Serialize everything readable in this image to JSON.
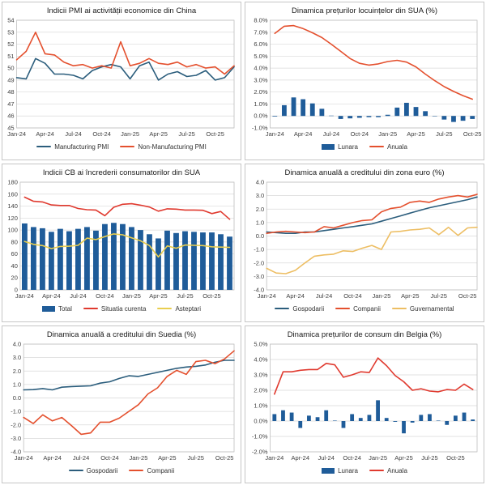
{
  "chart_data": [
    {
      "title": "Indicii PMI ai activității economice din China",
      "type": "line",
      "x_labels": [
        "Jan-24",
        "Apr-24",
        "Jul-24",
        "Oct-24",
        "Jan-25",
        "Apr-25",
        "Jul-25",
        "Oct-25"
      ],
      "x_label_every": 3,
      "x_count": 24,
      "x_style": "edge",
      "ylim": [
        45,
        54
      ],
      "ytick_step": 1,
      "ytick_format": "int",
      "grid": "horizontal",
      "legend_position": "bottom",
      "series": [
        {
          "name": "Manufacturing PMI",
          "type": "line",
          "color": "#2B5D7C",
          "values": [
            49.2,
            49.1,
            50.8,
            50.4,
            49.5,
            49.5,
            49.4,
            49.1,
            49.8,
            50.1,
            50.3,
            50.1,
            49.1,
            50.2,
            50.5,
            49.0,
            49.5,
            49.7,
            49.3,
            49.4,
            49.8,
            49.0,
            49.2,
            50.1
          ]
        },
        {
          "name": "Non-Manufacturing PMI",
          "type": "line",
          "color": "#E4502E",
          "values": [
            50.7,
            51.4,
            53.0,
            51.2,
            51.1,
            50.5,
            50.2,
            50.3,
            50.0,
            50.2,
            50.0,
            52.2,
            50.2,
            50.4,
            50.8,
            50.4,
            50.3,
            50.5,
            50.1,
            50.3,
            50.0,
            50.1,
            49.5,
            50.2
          ]
        }
      ]
    },
    {
      "title": "Dinamica prețurilor locuințelor din SUA (%)",
      "type": "bar-line",
      "x_labels": [
        "Jan-24",
        "Apr-24",
        "Jul-24",
        "Oct-24",
        "Jan-25",
        "Apr-25",
        "Jul-25",
        "Oct-25"
      ],
      "x_label_every": 3,
      "x_count": 22,
      "x_style": "center",
      "bar_frac": 0.5,
      "ylim": [
        -1,
        8
      ],
      "ytick_step": 1,
      "ytick_format": "pct1",
      "grid": "horizontal",
      "legend_position": "bottom",
      "series": [
        {
          "name": "Lunara",
          "type": "bar",
          "color": "#1F5C99",
          "values": [
            -0.05,
            0.9,
            1.55,
            1.4,
            1.05,
            0.6,
            0.03,
            -0.25,
            -0.2,
            -0.15,
            -0.1,
            -0.1,
            0.1,
            0.7,
            1.1,
            0.75,
            0.4,
            0.0,
            -0.3,
            -0.5,
            -0.4,
            -0.25
          ]
        },
        {
          "name": "Anuala",
          "type": "line",
          "color": "#E4502E",
          "values": [
            6.9,
            7.5,
            7.55,
            7.3,
            6.95,
            6.55,
            6.0,
            5.4,
            4.8,
            4.4,
            4.25,
            4.35,
            4.55,
            4.65,
            4.5,
            4.1,
            3.5,
            2.95,
            2.45,
            2.05,
            1.7,
            1.4
          ]
        }
      ]
    },
    {
      "title": "Indicii CB ai încrederii consumatorilor din SUA",
      "type": "bar-line",
      "x_labels": [
        "Jan-24",
        "Apr-24",
        "Jul-24",
        "Oct-24",
        "Jan-25",
        "Apr-25",
        "Jul-25",
        "Oct-25"
      ],
      "x_label_every": 3,
      "x_count": 24,
      "x_style": "center",
      "bar_frac": 0.62,
      "ylim": [
        0,
        180
      ],
      "ytick_step": 20,
      "ytick_format": "int",
      "grid": "horizontal",
      "legend_position": "bottom",
      "series": [
        {
          "name": "Total",
          "type": "bar",
          "color": "#1F5C99",
          "values": [
            111,
            105,
            103,
            97,
            102,
            98,
            102,
            105,
            99,
            110,
            112,
            110,
            105,
            100,
            93,
            86,
            99,
            95,
            98,
            97,
            96,
            96,
            93,
            89
          ]
        },
        {
          "name": "Situatia curenta",
          "type": "line",
          "color": "#E03A2F",
          "values": [
            155,
            148,
            147,
            142,
            141,
            141,
            136,
            134,
            133.5,
            124,
            138,
            143,
            144,
            141.5,
            138.5,
            131.5,
            135.5,
            135,
            133.5,
            133.5,
            133,
            127.5,
            131,
            118
          ]
        },
        {
          "name": "Asteptari",
          "type": "line",
          "color": "#E9CE4F",
          "values": [
            81,
            76,
            74,
            69,
            72.5,
            73,
            74.5,
            86.5,
            84,
            89,
            93.5,
            92,
            87,
            82,
            74,
            55,
            73.5,
            69.5,
            75,
            74.5,
            74,
            72,
            71.5,
            71
          ]
        }
      ]
    },
    {
      "title": "Dinamica anuală a creditului din zona euro (%)",
      "type": "line",
      "x_labels": [
        "Jan-24",
        "Apr-24",
        "Jul-24",
        "Oct-24",
        "Jan-25",
        "Apr-25",
        "Jul-25",
        "Oct-25"
      ],
      "x_label_every": 3,
      "x_count": 23,
      "x_style": "edge",
      "ylim": [
        -4,
        4
      ],
      "ytick_step": 1,
      "ytick_format": "dec1",
      "grid": "horizontal",
      "legend_position": "bottom",
      "series": [
        {
          "name": "Gospodarii",
          "type": "line",
          "color": "#2B5D7C",
          "values": [
            0.3,
            0.25,
            0.2,
            0.2,
            0.3,
            0.3,
            0.4,
            0.5,
            0.6,
            0.7,
            0.8,
            0.9,
            1.1,
            1.3,
            1.5,
            1.7,
            1.9,
            2.1,
            2.25,
            2.4,
            2.55,
            2.7,
            2.9
          ]
        },
        {
          "name": "Companii",
          "type": "line",
          "color": "#E4502E",
          "values": [
            0.2,
            0.3,
            0.35,
            0.3,
            0.25,
            0.3,
            0.7,
            0.6,
            0.8,
            1.0,
            1.15,
            1.2,
            1.8,
            2.05,
            2.15,
            2.5,
            2.6,
            2.5,
            2.75,
            2.9,
            3.0,
            2.9,
            3.1
          ]
        },
        {
          "name": "Guvernamental",
          "type": "line",
          "color": "#EDBE63",
          "values": [
            -2.4,
            -2.75,
            -2.8,
            -2.55,
            -2.0,
            -1.5,
            -1.4,
            -1.35,
            -1.1,
            -1.15,
            -0.9,
            -0.7,
            -1.0,
            0.3,
            0.35,
            0.45,
            0.5,
            0.6,
            0.1,
            0.65,
            0.05,
            0.6,
            0.65
          ]
        }
      ]
    },
    {
      "title": "Dinamica anuală a creditului din Suedia (%)",
      "type": "line",
      "x_labels": [
        "Jan-24",
        "Apr-24",
        "Jul-24",
        "Oct-24",
        "Jan-25",
        "Apr-25",
        "Jul-25",
        "Oct-25"
      ],
      "x_label_every": 3,
      "x_count": 23,
      "x_style": "edge",
      "ylim": [
        -4,
        4
      ],
      "ytick_step": 1,
      "ytick_format": "dec1",
      "grid": "horizontal",
      "legend_position": "bottom",
      "series": [
        {
          "name": "Gospodarii",
          "type": "line",
          "color": "#2B5D7C",
          "values": [
            0.6,
            0.62,
            0.7,
            0.6,
            0.8,
            0.85,
            0.88,
            0.9,
            1.1,
            1.2,
            1.45,
            1.65,
            1.6,
            1.75,
            1.9,
            2.05,
            2.2,
            2.3,
            2.35,
            2.45,
            2.65,
            2.8,
            2.8
          ]
        },
        {
          "name": "Companii",
          "type": "line",
          "color": "#E4502E",
          "values": [
            -1.45,
            -1.9,
            -1.25,
            -1.7,
            -1.45,
            -2.05,
            -2.7,
            -2.6,
            -1.8,
            -1.8,
            -1.5,
            -1.0,
            -0.5,
            0.3,
            0.75,
            1.6,
            2.05,
            1.75,
            2.7,
            2.8,
            2.55,
            2.9,
            3.5
          ]
        }
      ]
    },
    {
      "title": "Dinamica prețurilor de consum din Belgia (%)",
      "type": "bar-line",
      "x_labels": [
        "Jan-24",
        "Apr-24",
        "Jul-24",
        "Oct-24",
        "Jan-25",
        "Apr-25",
        "Jul-25",
        "Oct-25"
      ],
      "x_label_every": 3,
      "x_count": 24,
      "x_style": "center",
      "bar_frac": 0.45,
      "ylim": [
        -2,
        5
      ],
      "ytick_step": 1,
      "ytick_format": "pct1",
      "grid": "horizontal",
      "legend_position": "bottom",
      "series": [
        {
          "name": "Lunara",
          "type": "bar",
          "color": "#1F5C99",
          "values": [
            0.45,
            0.7,
            0.55,
            -0.45,
            0.35,
            0.25,
            0.7,
            0.03,
            -0.45,
            0.45,
            0.2,
            0.4,
            1.35,
            0.2,
            -0.05,
            -0.8,
            -0.1,
            0.4,
            0.45,
            0.03,
            -0.25,
            0.35,
            0.55,
            0.1
          ]
        },
        {
          "name": "Anuala",
          "type": "line",
          "color": "#E03A2F",
          "values": [
            1.75,
            3.2,
            3.2,
            3.3,
            3.35,
            3.35,
            3.75,
            3.65,
            2.85,
            3.0,
            3.2,
            3.15,
            4.1,
            3.6,
            2.95,
            2.55,
            2.0,
            2.1,
            1.95,
            1.9,
            2.05,
            2.0,
            2.4,
            2.05
          ]
        }
      ]
    }
  ]
}
